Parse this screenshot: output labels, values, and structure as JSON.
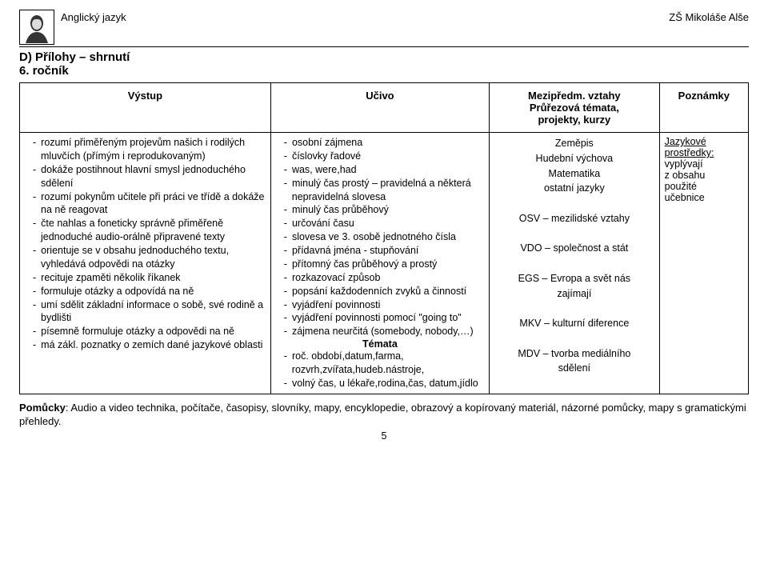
{
  "header": {
    "subject": "Anglický jazyk",
    "school": "ZŠ Mikoláše Alše"
  },
  "titles": {
    "section": "D)   Přílohy – shrnutí",
    "grade": "6. ročník"
  },
  "columns": {
    "c1": "Výstup",
    "c2": "Učivo",
    "c3_line1": "Mezipředm. vztahy",
    "c3_line2": "Průřezová témata,",
    "c3_line3": "projekty, kurzy",
    "c4": "Poznámky"
  },
  "vystup": [
    "rozumí přiměřeným projevům našich i rodilých mluvčích (přímým i reprodukovaným)",
    "dokáže postihnout hlavní smysl jednoduchého sdělení",
    "rozumí pokynům učitele při práci ve třídě a dokáže na ně reagovat",
    "čte nahlas a foneticky správně přiměřeně jednoduché audio-orálně připravené texty",
    "orientuje se v obsahu jednoduchého textu,  vyhledává odpovědi na otázky",
    "recituje zpaměti několik říkanek",
    "formuluje otázky a odpovídá na ně",
    "umí sdělit základní informace o sobě, své rodině a bydlišti",
    "písemně formuluje otázky a odpovědi na ně",
    "má zákl. poznatky o zemích dané jazykové oblasti"
  ],
  "ucivo": {
    "items": [
      "osobní zájmena",
      "číslovky řadové",
      "was, were,had",
      "minulý čas prostý – pravidelná a některá nepravidelná slovesa",
      "minulý čas průběhový",
      "určování času",
      "slovesa ve 3. osobě jednotného čísla",
      "přídavná jména - stupňování",
      "přítomný čas průběhový a prostý",
      "rozkazovací způsob",
      "popsání každodenních zvyků a činností",
      "vyjádření povinnosti",
      "vyjádření povinnosti pomocí \"going to\"",
      "zájmena neurčitá (somebody, nobody,…)"
    ],
    "temata_label": "Témata",
    "temata": [
      "roč. období,datum,farma, rozvrh,zvířata,hudeb.nástroje,",
      "volný čas, u lékaře,rodina,čas, datum,jídlo"
    ]
  },
  "topics": {
    "lines": [
      "Zeměpis",
      "Hudební výchova",
      "Matematika",
      "ostatní jazyky",
      "",
      "OSV – mezilidské vztahy",
      "",
      "VDO – společnost a stát",
      "",
      "EGS – Evropa a svět nás",
      "zajímají",
      "",
      "MKV – kulturní diference",
      "",
      "MDV – tvorba mediálního",
      "sdělení"
    ]
  },
  "notes": {
    "line1": "Jazykové",
    "line2": "prostředky:",
    "rest": [
      "vyplývají",
      "z obsahu",
      "použité",
      "učebnice"
    ]
  },
  "footer": {
    "label": "Pomůcky",
    "text": ": Audio a video technika, počítače, časopisy, slovníky, mapy, encyklopedie, obrazový a kopírovaný materiál, názorné pomůcky, mapy s gramatickými přehledy."
  },
  "page_number": "5",
  "layout": {
    "col_widths": [
      "31%",
      "27%",
      "21%",
      "11%"
    ]
  },
  "colors": {
    "text": "#000000",
    "bg": "#ffffff",
    "border": "#000000"
  }
}
